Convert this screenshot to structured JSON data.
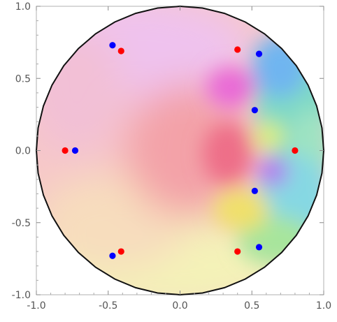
{
  "chart_data": {
    "type": "scatter",
    "title": "",
    "xlabel": "",
    "ylabel": "",
    "xlim": [
      -1.0,
      1.0
    ],
    "ylim": [
      -1.0,
      1.0
    ],
    "x_ticks": [
      -1.0,
      -0.5,
      0.0,
      0.5,
      1.0
    ],
    "y_ticks": [
      -1.0,
      -0.5,
      0.0,
      0.5,
      1.0
    ],
    "x_tick_labels": [
      "-1.0",
      "-0.5",
      "0.0",
      "0.5",
      "1.0"
    ],
    "y_tick_labels": [
      "-1.0",
      "-0.5",
      "0.0",
      "0.5",
      "1.0"
    ],
    "grid": false,
    "legend": "none",
    "domain": "unit disk",
    "background": "domain-coloring (hue = argument) over the unit disk",
    "series": [
      {
        "color": "#ff0000",
        "points": [
          {
            "x": -0.8,
            "y": 0.0
          },
          {
            "x": 0.8,
            "y": 0.0
          },
          {
            "x": 0.4,
            "y": 0.7
          },
          {
            "x": -0.41,
            "y": 0.69
          },
          {
            "x": -0.41,
            "y": -0.7
          },
          {
            "x": 0.4,
            "y": -0.7
          }
        ]
      },
      {
        "color": "#0000ff",
        "points": [
          {
            "x": -0.73,
            "y": 0.0
          },
          {
            "x": 0.52,
            "y": 0.28
          },
          {
            "x": 0.52,
            "y": -0.28
          },
          {
            "x": 0.55,
            "y": 0.67
          },
          {
            "x": -0.47,
            "y": 0.73
          },
          {
            "x": -0.47,
            "y": -0.73
          },
          {
            "x": 0.55,
            "y": -0.67
          }
        ]
      }
    ]
  }
}
